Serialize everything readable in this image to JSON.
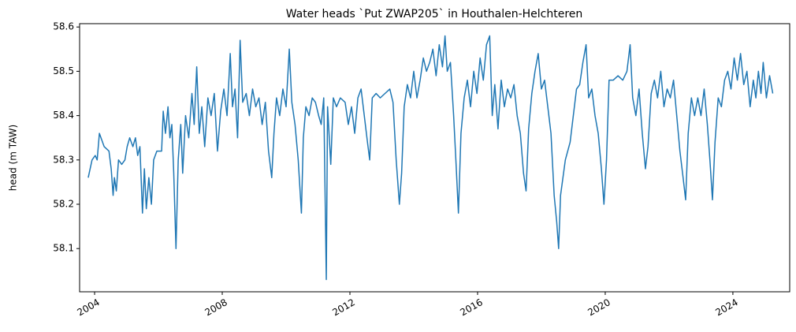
{
  "chart_data": {
    "type": "line",
    "title": "Water heads `Put ZWAP205` in Houthalen-Helchteren",
    "y_label": "head (m TAW)",
    "color": "#1f77b4",
    "xlim": [
      2003.53,
      2025.78
    ],
    "xticks": [
      2004,
      2008,
      2012,
      2016,
      2020,
      2024
    ],
    "ylim": [
      58.0025,
      58.6075
    ],
    "yticks": [
      58.1,
      58.2,
      58.3,
      58.4,
      58.5,
      58.6
    ],
    "x": [
      2003.8,
      2003.92,
      2004.02,
      2004.08,
      2004.15,
      2004.3,
      2004.45,
      2004.52,
      2004.58,
      2004.62,
      2004.68,
      2004.75,
      2004.85,
      2004.95,
      2005.02,
      2005.1,
      2005.2,
      2005.28,
      2005.35,
      2005.42,
      2005.5,
      2005.56,
      2005.62,
      2005.7,
      2005.78,
      2005.85,
      2005.95,
      2006.1,
      2006.15,
      2006.22,
      2006.3,
      2006.36,
      2006.42,
      2006.48,
      2006.55,
      2006.62,
      2006.7,
      2006.76,
      2006.85,
      2006.95,
      2007.05,
      2007.12,
      2007.2,
      2007.28,
      2007.36,
      2007.45,
      2007.55,
      2007.65,
      2007.75,
      2007.85,
      2007.95,
      2008.05,
      2008.15,
      2008.25,
      2008.32,
      2008.4,
      2008.48,
      2008.56,
      2008.64,
      2008.75,
      2008.85,
      2008.95,
      2009.05,
      2009.15,
      2009.25,
      2009.35,
      2009.45,
      2009.55,
      2009.62,
      2009.7,
      2009.8,
      2009.9,
      2010.0,
      2010.1,
      2010.18,
      2010.28,
      2010.38,
      2010.48,
      2010.54,
      2010.62,
      2010.72,
      2010.82,
      2010.92,
      2011.02,
      2011.1,
      2011.18,
      2011.26,
      2011.3,
      2011.4,
      2011.48,
      2011.58,
      2011.7,
      2011.85,
      2011.95,
      2012.05,
      2012.15,
      2012.25,
      2012.35,
      2012.45,
      2012.55,
      2012.62,
      2012.7,
      2012.82,
      2012.95,
      2013.1,
      2013.25,
      2013.35,
      2013.45,
      2013.55,
      2013.62,
      2013.7,
      2013.8,
      2013.9,
      2014.0,
      2014.1,
      2014.2,
      2014.3,
      2014.4,
      2014.5,
      2014.6,
      2014.7,
      2014.8,
      2014.9,
      2014.98,
      2015.05,
      2015.15,
      2015.25,
      2015.32,
      2015.4,
      2015.48,
      2015.58,
      2015.68,
      2015.78,
      2015.88,
      2015.98,
      2016.08,
      2016.18,
      2016.28,
      2016.38,
      2016.46,
      2016.54,
      2016.64,
      2016.74,
      2016.84,
      2016.94,
      2017.04,
      2017.14,
      2017.24,
      2017.34,
      2017.44,
      2017.52,
      2017.6,
      2017.7,
      2017.8,
      2017.9,
      2018.0,
      2018.1,
      2018.2,
      2018.3,
      2018.4,
      2018.48,
      2018.54,
      2018.6,
      2018.75,
      2018.9,
      2019.0,
      2019.1,
      2019.2,
      2019.3,
      2019.4,
      2019.48,
      2019.58,
      2019.68,
      2019.78,
      2019.88,
      2019.96,
      2020.04,
      2020.12,
      2020.25,
      2020.4,
      2020.55,
      2020.68,
      2020.78,
      2020.86,
      2020.96,
      2021.06,
      2021.16,
      2021.26,
      2021.34,
      2021.44,
      2021.54,
      2021.64,
      2021.74,
      2021.84,
      2021.94,
      2022.04,
      2022.14,
      2022.24,
      2022.34,
      2022.44,
      2022.52,
      2022.6,
      2022.7,
      2022.8,
      2022.9,
      2023.0,
      2023.1,
      2023.2,
      2023.28,
      2023.36,
      2023.44,
      2023.54,
      2023.64,
      2023.74,
      2023.84,
      2023.94,
      2024.04,
      2024.14,
      2024.24,
      2024.34,
      2024.44,
      2024.54,
      2024.64,
      2024.72,
      2024.8,
      2024.88,
      2024.95,
      2025.05,
      2025.15,
      2025.25
    ],
    "values": [
      58.26,
      58.3,
      58.31,
      58.3,
      58.36,
      58.33,
      58.32,
      58.28,
      58.22,
      58.26,
      58.23,
      58.3,
      58.29,
      58.3,
      58.33,
      58.35,
      58.33,
      58.35,
      58.31,
      58.33,
      58.18,
      58.28,
      58.19,
      58.26,
      58.2,
      58.3,
      58.32,
      58.32,
      58.41,
      58.36,
      58.42,
      58.35,
      58.38,
      58.27,
      58.1,
      58.3,
      58.38,
      58.27,
      58.4,
      58.35,
      58.45,
      58.38,
      58.51,
      58.36,
      58.42,
      58.33,
      58.44,
      58.4,
      58.45,
      58.32,
      58.41,
      58.46,
      58.4,
      58.54,
      58.42,
      58.46,
      58.35,
      58.57,
      58.43,
      58.45,
      58.4,
      58.46,
      58.42,
      58.44,
      58.38,
      58.43,
      58.32,
      58.26,
      58.36,
      58.44,
      58.4,
      58.46,
      58.42,
      58.55,
      58.43,
      58.38,
      58.3,
      58.18,
      58.35,
      58.42,
      58.4,
      58.44,
      58.43,
      58.4,
      58.38,
      58.44,
      58.03,
      58.42,
      58.29,
      58.44,
      58.42,
      58.44,
      58.43,
      58.38,
      58.42,
      58.36,
      58.44,
      58.46,
      58.4,
      58.34,
      58.3,
      58.44,
      58.45,
      58.44,
      58.45,
      58.46,
      58.43,
      58.3,
      58.2,
      58.27,
      58.42,
      58.47,
      58.44,
      58.5,
      58.44,
      58.48,
      58.53,
      58.5,
      58.52,
      58.55,
      58.49,
      58.56,
      58.51,
      58.58,
      58.5,
      58.52,
      58.4,
      58.3,
      58.18,
      58.36,
      58.44,
      58.48,
      58.42,
      58.5,
      58.45,
      58.53,
      58.48,
      58.56,
      58.58,
      58.4,
      58.47,
      58.37,
      58.48,
      58.42,
      58.46,
      58.44,
      58.47,
      58.4,
      58.36,
      58.27,
      58.23,
      58.37,
      58.45,
      58.5,
      58.54,
      58.46,
      58.48,
      58.42,
      58.36,
      58.22,
      58.16,
      58.1,
      58.22,
      58.3,
      58.34,
      58.4,
      58.46,
      58.47,
      58.52,
      58.56,
      58.44,
      58.46,
      58.4,
      58.36,
      58.28,
      58.2,
      58.3,
      58.48,
      58.48,
      58.49,
      58.48,
      58.5,
      58.56,
      58.44,
      58.4,
      58.46,
      58.36,
      58.28,
      58.33,
      58.45,
      58.48,
      58.44,
      58.5,
      58.42,
      58.46,
      58.44,
      58.48,
      58.4,
      58.32,
      58.26,
      58.21,
      58.36,
      58.44,
      58.4,
      58.44,
      58.4,
      58.46,
      58.38,
      58.3,
      58.21,
      58.34,
      58.44,
      58.42,
      58.48,
      58.5,
      58.46,
      58.53,
      58.48,
      58.54,
      58.47,
      58.5,
      58.42,
      58.48,
      58.44,
      58.5,
      58.45,
      58.52,
      58.44,
      58.49,
      58.45
    ]
  }
}
